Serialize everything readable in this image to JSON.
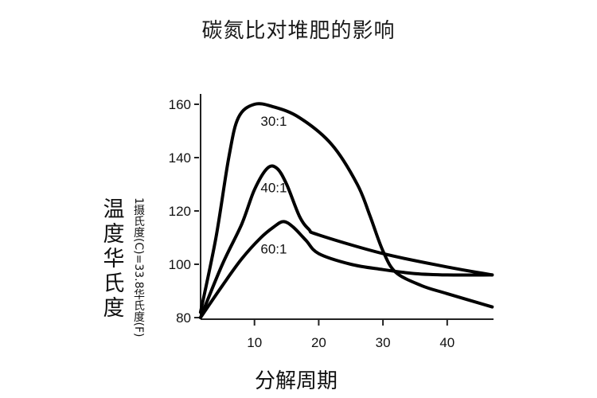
{
  "chart_data": {
    "type": "line",
    "title": "碳氮比对堆肥的影响",
    "xlabel": "分解周期",
    "ylabel": "温度华氏度",
    "ylabel_note": "1摄氏度(C)=33.8华氏度(F)",
    "xlim": [
      0,
      47
    ],
    "ylim": [
      80,
      160
    ],
    "x_ticks": [
      10,
      20,
      30,
      40
    ],
    "y_ticks": [
      80,
      100,
      120,
      140,
      160
    ],
    "grid": false,
    "legend_position": "inline labels",
    "series": [
      {
        "name": "30:1",
        "label_pos": {
          "x": 13,
          "y": 152
        },
        "points": [
          [
            1.6,
            82
          ],
          [
            4,
            110
          ],
          [
            6,
            140
          ],
          [
            7.5,
            155
          ],
          [
            10,
            160
          ],
          [
            13,
            159
          ],
          [
            17,
            155
          ],
          [
            22,
            145
          ],
          [
            26,
            130
          ],
          [
            28,
            118
          ],
          [
            30,
            105
          ],
          [
            32,
            97
          ],
          [
            36,
            92
          ],
          [
            40,
            89
          ],
          [
            47,
            84
          ]
        ]
      },
      {
        "name": "40:1",
        "label_pos": {
          "x": 13,
          "y": 127
        },
        "points": [
          [
            1.6,
            80
          ],
          [
            5,
            100
          ],
          [
            8,
            115
          ],
          [
            10,
            128
          ],
          [
            12,
            136
          ],
          [
            13.5,
            136
          ],
          [
            15,
            130
          ],
          [
            17,
            118
          ],
          [
            18.5,
            113
          ],
          [
            20,
            111
          ],
          [
            30,
            104
          ],
          [
            40,
            99
          ],
          [
            47,
            96
          ]
        ]
      },
      {
        "name": "60:1",
        "label_pos": {
          "x": 13,
          "y": 104
        },
        "points": [
          [
            1.6,
            80
          ],
          [
            5,
            92
          ],
          [
            8,
            102
          ],
          [
            11,
            110
          ],
          [
            13,
            114
          ],
          [
            14.5,
            116
          ],
          [
            16,
            114
          ],
          [
            18,
            109
          ],
          [
            20,
            104
          ],
          [
            25,
            100
          ],
          [
            30,
            98
          ],
          [
            35,
            96.5
          ],
          [
            40,
            96
          ],
          [
            47,
            96
          ]
        ]
      }
    ]
  },
  "colors": {
    "line": "#000000",
    "background": "#ffffff"
  }
}
